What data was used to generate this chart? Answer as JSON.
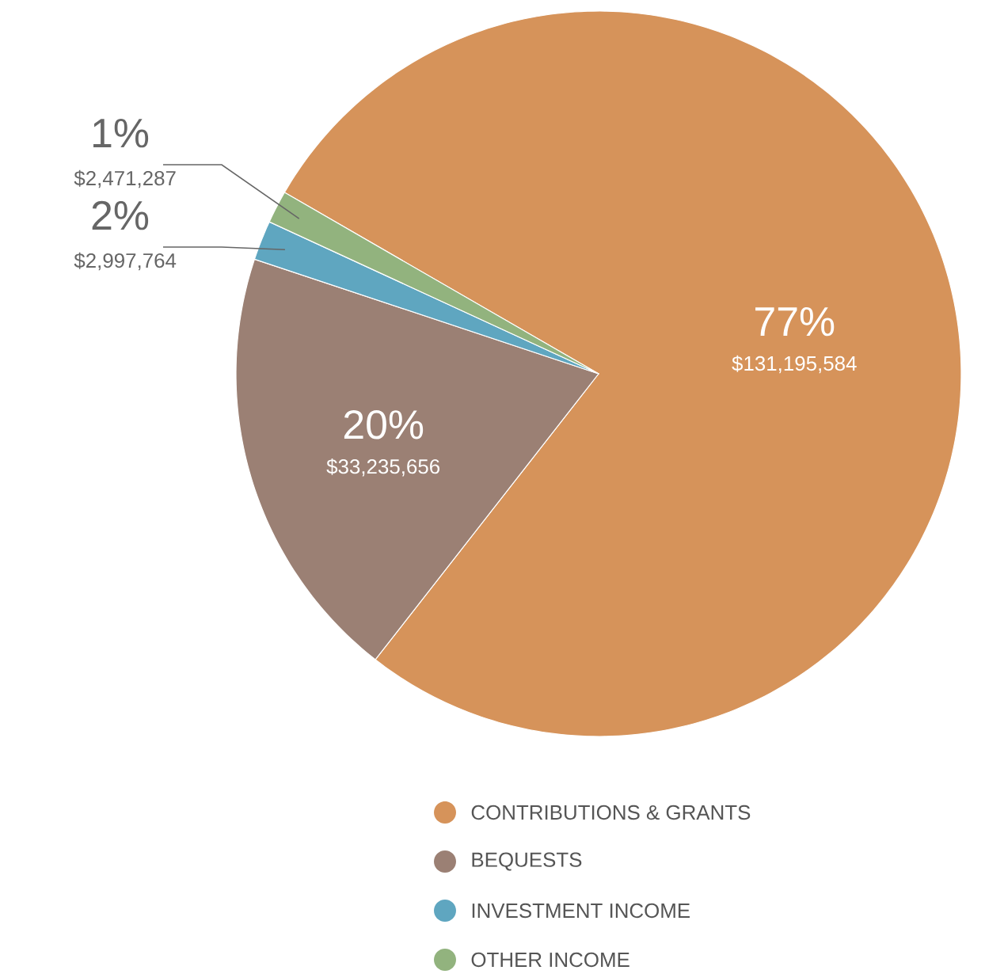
{
  "chart_data": {
    "type": "pie",
    "categories": [
      "CONTRIBUTIONS & GRANTS",
      "BEQUESTS",
      "INVESTMENT INCOME",
      "OTHER INCOME"
    ],
    "values": [
      131195584,
      33235656,
      2997764,
      2471287
    ],
    "colors": [
      "#d6935a",
      "#9b8074",
      "#5fa6c0",
      "#92b37e"
    ],
    "value_labels": [
      "$131,195,584",
      "$33,235,656",
      "$2,997,764",
      "$2,471,287"
    ],
    "annotations": [
      {
        "text": "77%",
        "x": "CONTRIBUTIONS & GRANTS"
      },
      {
        "text": "20%",
        "x": "BEQUESTS"
      },
      {
        "text": "2%",
        "x": "INVESTMENT INCOME"
      },
      {
        "text": "1%",
        "x": "OTHER INCOME"
      }
    ],
    "legend": "bottom"
  }
}
